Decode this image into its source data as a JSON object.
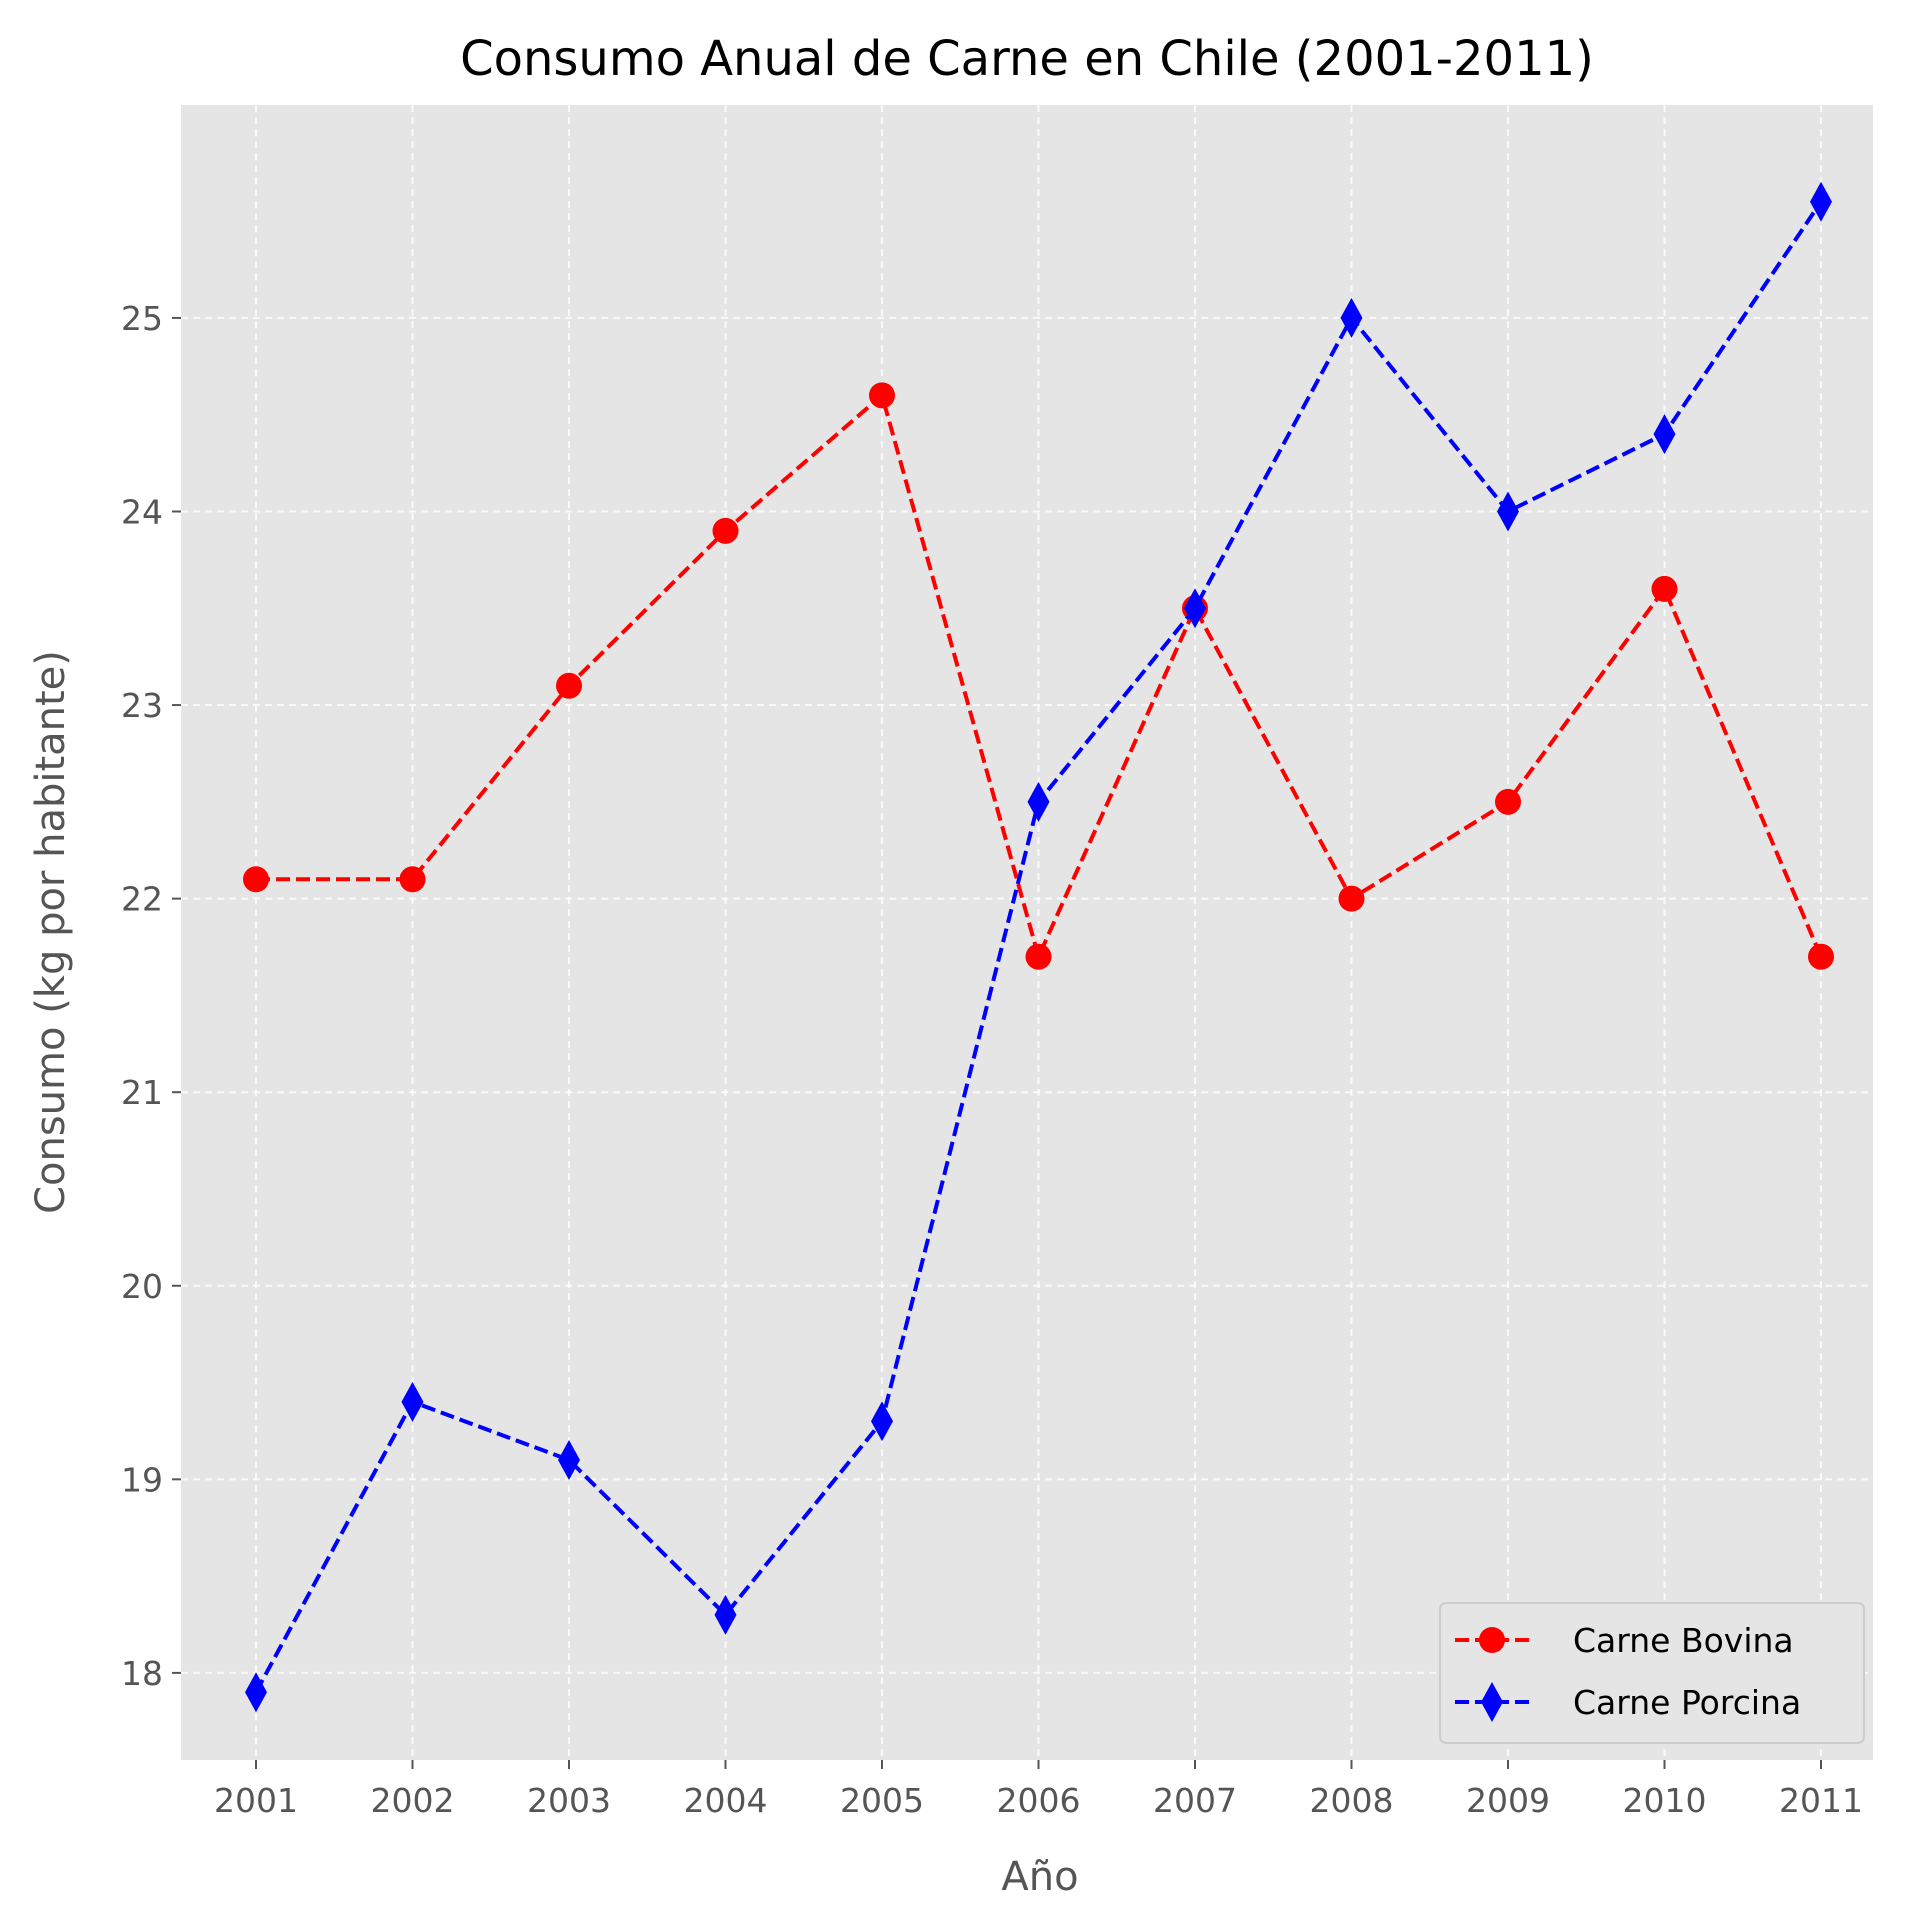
{
  "chart_data": {
    "type": "line",
    "title": "Consumo Anual de Carne en Chile (2001-2011)",
    "xlabel": "Año",
    "ylabel": "Consumo (kg por habitante)",
    "categories": [
      "2001",
      "2002",
      "2003",
      "2004",
      "2005",
      "2006",
      "2007",
      "2008",
      "2009",
      "2010",
      "2011"
    ],
    "yticks": [
      "18",
      "19",
      "20",
      "21",
      "22",
      "23",
      "24",
      "25"
    ],
    "ylim": [
      17.55,
      26.1
    ],
    "grid": true,
    "legend_position": "lower-right",
    "series": [
      {
        "name": "Carne Bovina",
        "color": "#ff0000",
        "marker": "circle",
        "linestyle": "dashed",
        "values": [
          22.1,
          22.1,
          23.1,
          23.9,
          24.6,
          21.7,
          23.5,
          22.0,
          22.5,
          23.6,
          21.7
        ]
      },
      {
        "name": "Carne Porcina",
        "color": "#0000ff",
        "marker": "thin-diamond",
        "linestyle": "dashed",
        "values": [
          17.9,
          19.4,
          19.1,
          18.3,
          19.3,
          22.5,
          23.5,
          25.0,
          24.0,
          24.4,
          25.6
        ]
      }
    ],
    "colors": {
      "plot_background": "#e5e5e5",
      "grid": "#ffffff",
      "tick_text": "#555555"
    }
  }
}
